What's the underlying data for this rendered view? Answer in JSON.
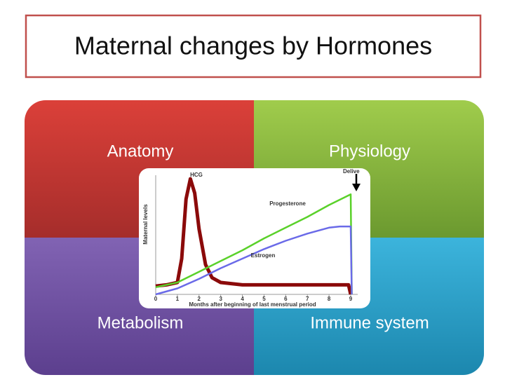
{
  "header": {
    "title": "Maternal changes by Hormones"
  },
  "quadrants": [
    {
      "label": "Anatomy"
    },
    {
      "label": "Physiology"
    },
    {
      "label": "Metabolism"
    },
    {
      "label": "Immune system"
    }
  ],
  "inset_chart": {
    "type": "line",
    "y_label": "Maternal levels",
    "x_label": "Months after beginning of last menstrual period",
    "xlim": [
      0,
      9
    ],
    "xticks": [
      0,
      1,
      2,
      3,
      4,
      5,
      6,
      7,
      8,
      9
    ],
    "ylim": [
      0,
      100
    ],
    "annotation": "Delive",
    "series": [
      {
        "name": "HCG",
        "color": "#8b0a0a",
        "x": [
          0,
          0.5,
          1,
          1.2,
          1.4,
          1.6,
          1.8,
          2,
          2.3,
          2.6,
          3,
          4,
          5,
          6,
          7,
          8,
          8.9,
          9
        ],
        "values": [
          7,
          8,
          10,
          30,
          80,
          97,
          85,
          55,
          25,
          14,
          10,
          8,
          8,
          8,
          8,
          8,
          8,
          0
        ]
      },
      {
        "name": "Progesterone",
        "color": "#5ad12a",
        "x": [
          0,
          1,
          2,
          3,
          4,
          5,
          6,
          7,
          8,
          9,
          9.05
        ],
        "values": [
          6,
          10,
          19,
          28,
          37,
          47,
          56,
          65,
          75,
          84,
          0
        ]
      },
      {
        "name": "Estrogen",
        "color": "#6a6ae8",
        "x": [
          0,
          1,
          2,
          3,
          4,
          5,
          6,
          7,
          8,
          8.5,
          9,
          9.05
        ],
        "values": [
          0,
          5,
          13,
          22,
          30,
          38,
          45,
          51,
          56,
          57,
          57,
          0
        ]
      }
    ]
  }
}
